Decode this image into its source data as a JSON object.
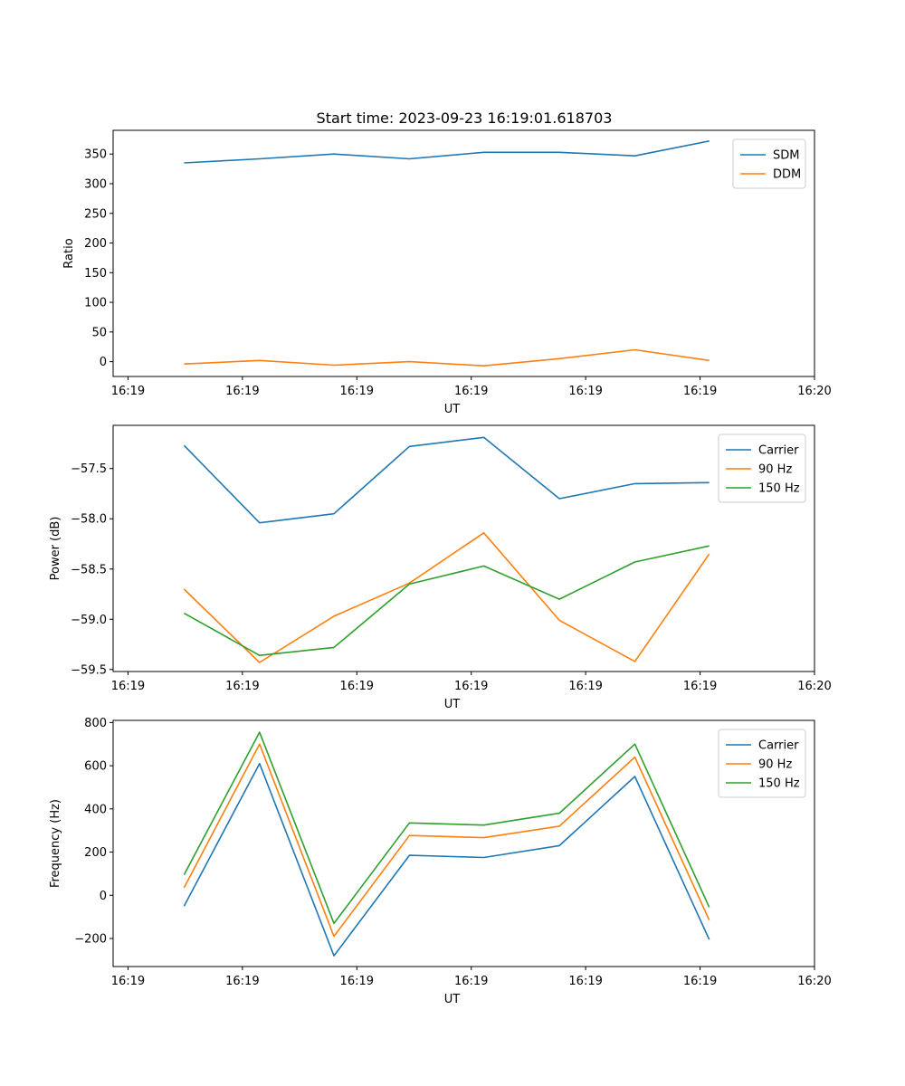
{
  "figure": {
    "title": "Start time: 2023-09-23 16:19:01.618703"
  },
  "colors": {
    "c0": "#1f77b4",
    "c1": "#ff7f0e",
    "c2": "#2ca02c"
  },
  "chart_data": [
    {
      "type": "line",
      "title": "Start time: 2023-09-23 16:19:01.618703",
      "xlabel": "UT",
      "ylabel": "Ratio",
      "x_ticks": [
        "16:19",
        "16:19",
        "16:19",
        "16:19",
        "16:19",
        "16:19",
        "16:20"
      ],
      "x_tick_positions": [
        0,
        1,
        2,
        3,
        4,
        5,
        6
      ],
      "xlim": [
        -0.13,
        6.0
      ],
      "x": [
        0.49,
        1.15,
        1.8,
        2.46,
        3.11,
        3.77,
        4.43,
        5.08
      ],
      "y_ticks": [
        0,
        50,
        100,
        150,
        200,
        250,
        300,
        350
      ],
      "ylim": [
        -25,
        390
      ],
      "legend_position": "top-right",
      "series": [
        {
          "name": "SDM",
          "color": "#1f77b4",
          "values": [
            335,
            342,
            350,
            342,
            353,
            353,
            347,
            372
          ]
        },
        {
          "name": "DDM",
          "color": "#ff7f0e",
          "values": [
            -4,
            2,
            -6,
            0,
            -7,
            5,
            20,
            2
          ]
        }
      ]
    },
    {
      "type": "line",
      "xlabel": "UT",
      "ylabel": "Power (dB)",
      "x_ticks": [
        "16:19",
        "16:19",
        "16:19",
        "16:19",
        "16:19",
        "16:19",
        "16:20"
      ],
      "x_tick_positions": [
        0,
        1,
        2,
        3,
        4,
        5,
        6
      ],
      "xlim": [
        -0.13,
        6.0
      ],
      "x": [
        0.49,
        1.15,
        1.8,
        2.46,
        3.11,
        3.77,
        4.43,
        5.08
      ],
      "y_ticks": [
        -59.5,
        -59.0,
        -58.5,
        -58.0,
        -57.5
      ],
      "y_tick_labels": [
        "−59.5",
        "−59.0",
        "−58.5",
        "−58.0",
        "−57.5"
      ],
      "ylim": [
        -59.52,
        -57.07
      ],
      "legend_position": "top-right",
      "series": [
        {
          "name": "Carrier",
          "color": "#1f77b4",
          "values": [
            -57.27,
            -58.04,
            -57.95,
            -57.28,
            -57.19,
            -57.8,
            -57.65,
            -57.64
          ]
        },
        {
          "name": "90 Hz",
          "color": "#ff7f0e",
          "values": [
            -58.7,
            -59.43,
            -58.97,
            -58.64,
            -58.14,
            -59.01,
            -59.42,
            -58.35
          ]
        },
        {
          "name": "150 Hz",
          "color": "#2ca02c",
          "values": [
            -58.94,
            -59.36,
            -59.28,
            -58.65,
            -58.47,
            -58.8,
            -58.43,
            -58.27
          ]
        }
      ]
    },
    {
      "type": "line",
      "xlabel": "UT",
      "ylabel": "Frequency (Hz)",
      "x_ticks": [
        "16:19",
        "16:19",
        "16:19",
        "16:19",
        "16:19",
        "16:19",
        "16:20"
      ],
      "x_tick_positions": [
        0,
        1,
        2,
        3,
        4,
        5,
        6
      ],
      "xlim": [
        -0.13,
        6.0
      ],
      "x": [
        0.49,
        1.15,
        1.8,
        2.46,
        3.11,
        3.77,
        4.43,
        5.08
      ],
      "y_ticks": [
        -200,
        0,
        200,
        400,
        600,
        800
      ],
      "y_tick_labels": [
        "−200",
        "0",
        "200",
        "400",
        "600",
        "800"
      ],
      "ylim": [
        -330,
        810
      ],
      "legend_position": "top-right",
      "series": [
        {
          "name": "Carrier",
          "color": "#1f77b4",
          "values": [
            -50,
            610,
            -280,
            185,
            175,
            230,
            550,
            -205
          ]
        },
        {
          "name": "90 Hz",
          "color": "#ff7f0e",
          "values": [
            35,
            700,
            -190,
            277,
            267,
            320,
            640,
            -115
          ]
        },
        {
          "name": "150 Hz",
          "color": "#2ca02c",
          "values": [
            95,
            755,
            -130,
            335,
            325,
            380,
            700,
            -55
          ]
        }
      ]
    }
  ]
}
